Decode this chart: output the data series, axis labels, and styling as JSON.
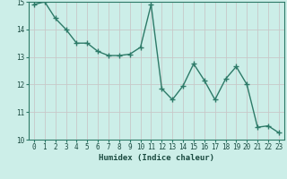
{
  "x": [
    0,
    1,
    2,
    3,
    4,
    5,
    6,
    7,
    8,
    9,
    10,
    11,
    12,
    13,
    14,
    15,
    16,
    17,
    18,
    19,
    20,
    21,
    22,
    23
  ],
  "y": [
    14.9,
    15.0,
    14.4,
    14.0,
    13.5,
    13.5,
    13.2,
    13.05,
    13.05,
    13.1,
    13.35,
    14.9,
    11.85,
    11.45,
    11.95,
    12.75,
    12.15,
    11.45,
    12.2,
    12.65,
    12.0,
    10.45,
    10.5,
    10.25
  ],
  "line_color": "#2d7a68",
  "marker": "+",
  "marker_size": 4,
  "marker_lw": 1.0,
  "bg_color": "#cceee8",
  "grid_color": "#c8c8c8",
  "xlabel": "Humidex (Indice chaleur)",
  "ylim": [
    10,
    15
  ],
  "xlim": [
    -0.5,
    23.5
  ],
  "yticks": [
    10,
    11,
    12,
    13,
    14,
    15
  ],
  "xticks": [
    0,
    1,
    2,
    3,
    4,
    5,
    6,
    7,
    8,
    9,
    10,
    11,
    12,
    13,
    14,
    15,
    16,
    17,
    18,
    19,
    20,
    21,
    22,
    23
  ],
  "font_color": "#1a4a40",
  "linewidth": 1.0
}
